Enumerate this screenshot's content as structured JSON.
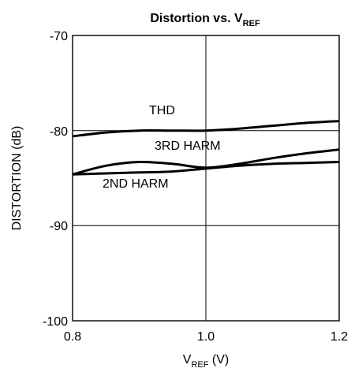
{
  "chart_data": {
    "type": "line",
    "title": {
      "main": "Distortion vs. V",
      "sub": "REF"
    },
    "xlabel": {
      "main": "V",
      "sub": "REF",
      "suffix": " (V)"
    },
    "ylabel": "DISTORTION (dB)",
    "xlim": [
      0.8,
      1.2
    ],
    "ylim": [
      -100,
      -70
    ],
    "x_ticks": [
      "0.8",
      "1.0",
      "1.2"
    ],
    "y_ticks": [
      "-70",
      "-80",
      "-90",
      "-100"
    ],
    "grid": true,
    "series": [
      {
        "name": "THD",
        "x": [
          0.8,
          0.85,
          0.9,
          0.95,
          1.0,
          1.05,
          1.1,
          1.15,
          1.2
        ],
        "y": [
          -80.6,
          -80.2,
          -80.0,
          -80.0,
          -80.0,
          -79.8,
          -79.5,
          -79.2,
          -79.0
        ]
      },
      {
        "name": "3RD HARM",
        "x": [
          0.8,
          0.85,
          0.9,
          0.95,
          1.0,
          1.05,
          1.1,
          1.15,
          1.2
        ],
        "y": [
          -84.6,
          -83.7,
          -83.3,
          -83.5,
          -83.9,
          -83.5,
          -82.9,
          -82.4,
          -82.0
        ]
      },
      {
        "name": "2ND HARM",
        "x": [
          0.8,
          0.85,
          0.9,
          0.95,
          1.0,
          1.05,
          1.1,
          1.15,
          1.2
        ],
        "y": [
          -84.6,
          -84.5,
          -84.4,
          -84.3,
          -84.0,
          -83.7,
          -83.5,
          -83.4,
          -83.3
        ]
      }
    ]
  }
}
